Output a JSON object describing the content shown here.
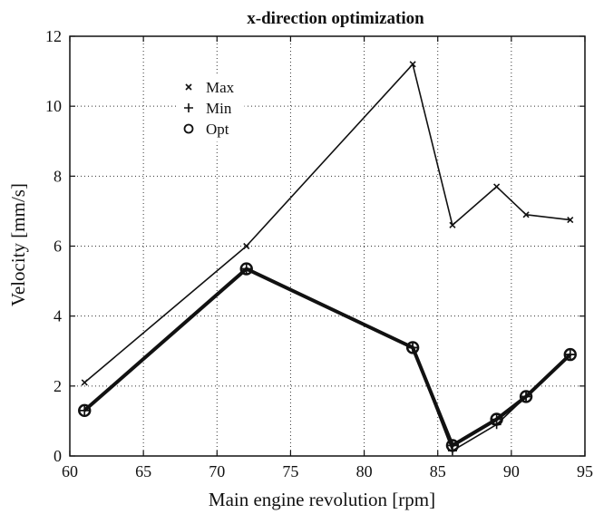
{
  "chart_data": {
    "type": "line",
    "title": "x-direction optimization",
    "xlabel": "Main engine revolution [rpm]",
    "ylabel": "Velocity [mm/s]",
    "xlim": [
      60,
      95
    ],
    "ylim": [
      0,
      12
    ],
    "xticks": [
      60,
      65,
      70,
      75,
      80,
      85,
      90,
      95
    ],
    "yticks": [
      0,
      2,
      4,
      6,
      8,
      10,
      12
    ],
    "grid": true,
    "legend_position": "top-left",
    "series": [
      {
        "name": "Max",
        "marker": "x",
        "line_weight": "thin",
        "color": "#111111",
        "x": [
          61,
          72,
          83.3,
          86,
          89,
          91,
          94
        ],
        "y": [
          2.1,
          6.0,
          11.2,
          6.6,
          7.7,
          6.9,
          6.75
        ]
      },
      {
        "name": "Min",
        "marker": "plus",
        "line_weight": "thin",
        "color": "#111111",
        "x": [
          61,
          72,
          83.3,
          86,
          89,
          91,
          94
        ],
        "y": [
          1.3,
          5.35,
          3.1,
          0.15,
          0.9,
          1.7,
          2.9
        ]
      },
      {
        "name": "Opt",
        "marker": "circle",
        "line_weight": "thick",
        "color": "#111111",
        "x": [
          61,
          72,
          83.3,
          86,
          89,
          91,
          94
        ],
        "y": [
          1.3,
          5.35,
          3.1,
          0.3,
          1.05,
          1.7,
          2.9
        ]
      }
    ]
  }
}
